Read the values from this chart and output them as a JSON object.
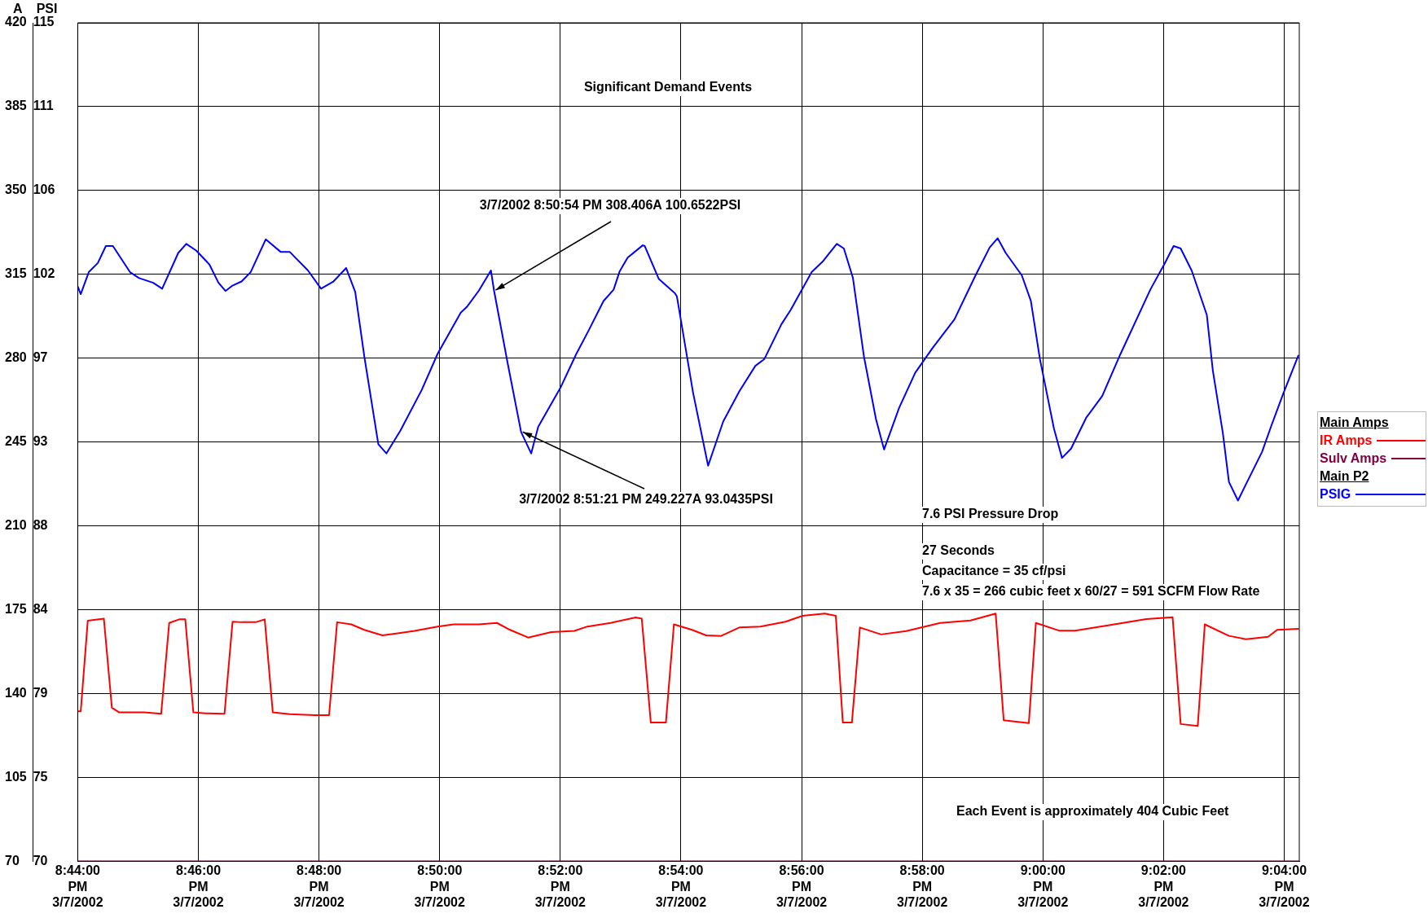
{
  "chart_data": {
    "type": "line",
    "title": "Significant Demand Events",
    "ylabel": "A",
    "y2label": "PSI",
    "xlim": [
      "2002-03-07T20:44:00",
      "2002-03-07T21:04:15"
    ],
    "xticks": [
      {
        "value": "2002-03-07T20:44",
        "label": "8:44:00 PM 3/7/2002"
      },
      {
        "value": "2002-03-07T20:46",
        "label": "8:46:00 PM 3/7/2002"
      },
      {
        "value": "2002-03-07T20:48",
        "label": "8:48:00 PM 3/7/2002"
      },
      {
        "value": "2002-03-07T20:50",
        "label": "8:50:00 PM 3/7/2002"
      },
      {
        "value": "2002-03-07T20:52",
        "label": "8:52:00 PM 3/7/2002"
      },
      {
        "value": "2002-03-07T20:54",
        "label": "8:54:00 PM 3/7/2002"
      },
      {
        "value": "2002-03-07T20:56",
        "label": "8:56:00 PM 3/7/2002"
      },
      {
        "value": "2002-03-07T20:58",
        "label": "8:58:00 PM 3/7/2002"
      },
      {
        "value": "2002-03-07T21:00",
        "label": "9:00:00 PM 3/7/2002"
      },
      {
        "value": "2002-03-07T21:02",
        "label": "9:02:00 PM 3/7/2002"
      },
      {
        "value": "2002-03-07T21:04",
        "label": "9:04:00 PM 3/7/2002"
      }
    ],
    "ylim": [
      70,
      420
    ],
    "yticks": [
      70,
      105,
      140,
      175,
      210,
      245,
      280,
      315,
      350,
      385,
      420
    ],
    "y2lim": [
      70,
      115
    ],
    "y2ticks": [
      70,
      {
        "value": 74.5,
        "label": "75"
      },
      79,
      {
        "value": 83.5,
        "label": "84"
      },
      88,
      {
        "value": 92.5,
        "label": "93"
      },
      97,
      {
        "value": 101.5,
        "label": "102"
      },
      106,
      {
        "value": 110.5,
        "label": "111"
      },
      115
    ],
    "grid": true,
    "legend": "right",
    "marker": "none",
    "line_style": "solid",
    "annotations": [
      {
        "text": "3/7/2002 8:50:54 PM 308.406A 100.6522PSI",
        "x": "2002-03-07T20:50:54",
        "y": 308.406
      },
      {
        "text": "3/7/2002 8:51:21 PM 249.227A 93.0435PSI",
        "x": "2002-03-07T20:51:21",
        "y": 249.227
      },
      "7.6 PSI Pressure Drop",
      "27 Seconds",
      "Capacitance = 35 cf/psi",
      "7.6 x 35 = 266 cubic feet x 60/27 = 591 SCFM Flow Rate",
      "Each Event is approximately 404 Cubic Feet",
      "Main Amps",
      "Main P2"
    ],
    "series": [
      {
        "name": "IR Amps",
        "color": "#ff0000",
        "x": [
          "2002-03-07T20:44:00",
          "2002-03-07T20:44:03",
          "2002-03-07T20:44:10",
          "2002-03-07T20:44:26",
          "2002-03-07T20:44:34",
          "2002-03-07T20:44:41",
          "2002-03-07T20:45:06",
          "2002-03-07T20:45:23",
          "2002-03-07T20:45:31",
          "2002-03-07T20:45:41",
          "2002-03-07T20:45:47",
          "2002-03-07T20:45:55",
          "2002-03-07T20:46:07",
          "2002-03-07T20:46:26",
          "2002-03-07T20:46:34",
          "2002-03-07T20:46:43",
          "2002-03-07T20:46:57",
          "2002-03-07T20:47:06",
          "2002-03-07T20:47:14",
          "2002-03-07T20:47:31",
          "2002-03-07T20:47:56",
          "2002-03-07T20:48:10",
          "2002-03-07T20:48:18",
          "2002-03-07T20:48:32",
          "2002-03-07T20:48:45",
          "2002-03-07T20:49:03",
          "2002-03-07T20:49:17",
          "2002-03-07T20:49:35",
          "2002-03-07T20:49:58",
          "2002-03-07T20:50:14",
          "2002-03-07T20:50:39",
          "2002-03-07T20:50:57",
          "2002-03-07T20:51:10",
          "2002-03-07T20:51:28",
          "2002-03-07T20:51:51",
          "2002-03-07T20:52:14",
          "2002-03-07T20:52:27",
          "2002-03-07T20:52:50",
          "2002-03-07T20:53:15",
          "2002-03-07T20:53:21",
          "2002-03-07T20:53:30",
          "2002-03-07T20:53:45",
          "2002-03-07T20:53:53",
          "2002-03-07T20:54:11",
          "2002-03-07T20:54:25",
          "2002-03-07T20:54:40",
          "2002-03-07T20:54:58",
          "2002-03-07T20:55:19",
          "2002-03-07T20:55:44",
          "2002-03-07T20:56:01",
          "2002-03-07T20:56:23",
          "2002-03-07T20:56:34",
          "2002-03-07T20:56:41",
          "2002-03-07T20:56:50",
          "2002-03-07T20:56:58",
          "2002-03-07T20:57:19",
          "2002-03-07T20:57:44",
          "2002-03-07T20:58:18",
          "2002-03-07T20:58:48",
          "2002-03-07T20:59:13",
          "2002-03-07T20:59:21",
          "2002-03-07T20:59:46",
          "2002-03-07T20:59:53",
          "2002-03-07T21:00:16",
          "2002-03-07T21:00:32",
          "2002-03-07T21:01:06",
          "2002-03-07T21:01:43",
          "2002-03-07T21:02:09",
          "2002-03-07T21:02:17",
          "2002-03-07T21:02:34",
          "2002-03-07T21:02:41",
          "2002-03-07T21:03:05",
          "2002-03-07T21:03:22",
          "2002-03-07T21:03:44",
          "2002-03-07T21:03:53",
          "2002-03-07T21:04:14"
        ],
        "values": [
          132.6,
          132.6,
          170.4,
          171.3,
          134.1,
          132.2,
          132.2,
          131.6,
          169.5,
          171,
          171,
          132.2,
          131.8,
          131.6,
          170,
          169.8,
          169.8,
          171,
          132.2,
          131.4,
          131,
          131,
          169.8,
          168.9,
          166.6,
          164.3,
          165.1,
          166.2,
          168,
          168.9,
          168.9,
          169.5,
          166.6,
          163.4,
          165.7,
          166.2,
          168,
          169.5,
          171.8,
          171.3,
          127.9,
          127.9,
          168.9,
          166.6,
          164.3,
          164.1,
          167.6,
          168,
          170,
          172.5,
          173.4,
          172.5,
          127.9,
          127.9,
          167.6,
          164.7,
          166.1,
          169.5,
          170.5,
          173.4,
          128.9,
          127.7,
          169.5,
          166.3,
          166.3,
          168.6,
          171.1,
          171.9,
          127.3,
          126.5,
          168.9,
          164.1,
          162.7,
          163.7,
          166.6,
          167
        ]
      },
      {
        "name": "Sulv Amps",
        "color": "#800040",
        "x": [
          "2002-03-07T20:44:00",
          "2002-03-07T21:04:15"
        ],
        "values": [
          70,
          70
        ]
      },
      {
        "name": "PSIG",
        "color": "#0000ff",
        "axis": "y2",
        "x": [
          "2002-03-07T20:44:00",
          "2002-03-07T20:44:03",
          "2002-03-07T20:44:11",
          "2002-03-07T20:44:20",
          "2002-03-07T20:44:28",
          "2002-03-07T20:44:35",
          "2002-03-07T20:44:52",
          "2002-03-07T20:45:01",
          "2002-03-07T20:45:15",
          "2002-03-07T20:45:24",
          "2002-03-07T20:45:40",
          "2002-03-07T20:45:48",
          "2002-03-07T20:45:58",
          "2002-03-07T20:46:11",
          "2002-03-07T20:46:20",
          "2002-03-07T20:46:27",
          "2002-03-07T20:46:34",
          "2002-03-07T20:46:43",
          "2002-03-07T20:46:52",
          "2002-03-07T20:47:07",
          "2002-03-07T20:47:22",
          "2002-03-07T20:47:31",
          "2002-03-07T20:47:49",
          "2002-03-07T20:48:02",
          "2002-03-07T20:48:14",
          "2002-03-07T20:48:27",
          "2002-03-07T20:48:36",
          "2002-03-07T20:48:45",
          "2002-03-07T20:48:59",
          "2002-03-07T20:49:07",
          "2002-03-07T20:49:21",
          "2002-03-07T20:49:42",
          "2002-03-07T20:49:58",
          "2002-03-07T20:50:21",
          "2002-03-07T20:50:27",
          "2002-03-07T20:50:39",
          "2002-03-07T20:50:51",
          "2002-03-07T20:50:54",
          "2002-03-07T20:51:08",
          "2002-03-07T20:51:21",
          "2002-03-07T20:51:31",
          "2002-03-07T20:51:38",
          "2002-03-07T20:52:00",
          "2002-03-07T20:52:16",
          "2002-03-07T20:52:28",
          "2002-03-07T20:52:43",
          "2002-03-07T20:52:53",
          "2002-03-07T20:52:59",
          "2002-03-07T20:53:07",
          "2002-03-07T20:53:22",
          "2002-03-07T20:53:24",
          "2002-03-07T20:53:38",
          "2002-03-07T20:53:54",
          "2002-03-07T20:53:56",
          "2002-03-07T20:54:12",
          "2002-03-07T20:54:27",
          "2002-03-07T20:54:42",
          "2002-03-07T20:54:58",
          "2002-03-07T20:55:14",
          "2002-03-07T20:55:23",
          "2002-03-07T20:55:40",
          "2002-03-07T20:55:49",
          "2002-03-07T20:56:10",
          "2002-03-07T20:56:21",
          "2002-03-07T20:56:35",
          "2002-03-07T20:56:42",
          "2002-03-07T20:56:51",
          "2002-03-07T20:57:02",
          "2002-03-07T20:57:14",
          "2002-03-07T20:57:22",
          "2002-03-07T20:57:37",
          "2002-03-07T20:57:53",
          "2002-03-07T20:58:10",
          "2002-03-07T20:58:32",
          "2002-03-07T20:58:53",
          "2002-03-07T20:59:07",
          "2002-03-07T20:59:15",
          "2002-03-07T20:59:23",
          "2002-03-07T20:59:39",
          "2002-03-07T20:59:48",
          "2002-03-07T20:59:57",
          "2002-03-07T21:00:11",
          "2002-03-07T21:00:19",
          "2002-03-07T21:00:28",
          "2002-03-07T21:00:43",
          "2002-03-07T21:00:59",
          "2002-03-07T21:01:17",
          "2002-03-07T21:01:47",
          "2002-03-07T21:02:01",
          "2002-03-07T21:02:10",
          "2002-03-07T21:02:17",
          "2002-03-07T21:02:28",
          "2002-03-07T21:02:43",
          "2002-03-07T21:02:49",
          "2002-03-07T21:02:59",
          "2002-03-07T21:03:05",
          "2002-03-07T21:03:14",
          "2002-03-07T21:03:22",
          "2002-03-07T21:03:38",
          "2002-03-07T21:03:47",
          "2002-03-07T21:03:59",
          "2002-03-07T21:04:14"
        ],
        "values": [
          100.85,
          100.44,
          101.62,
          102.11,
          103.02,
          103.02,
          101.62,
          101.3,
          101.05,
          100.73,
          102.65,
          103.14,
          102.77,
          102.03,
          101.05,
          100.61,
          100.9,
          101.12,
          101.62,
          103.38,
          102.7,
          102.7,
          101.71,
          100.73,
          101.1,
          101.84,
          100.56,
          97.12,
          92.38,
          91.89,
          93.12,
          95.28,
          97.24,
          99.45,
          99.75,
          100.63,
          101.71,
          100.65,
          96.63,
          93.04,
          91.89,
          93.32,
          95.4,
          97.24,
          98.47,
          100.07,
          100.68,
          101.66,
          102.4,
          103.06,
          103.02,
          101.25,
          100.49,
          100.31,
          95.16,
          91.23,
          93.6,
          95.22,
          96.59,
          96.96,
          98.83,
          99.58,
          101.62,
          102.19,
          103.14,
          102.89,
          101.32,
          97.09,
          93.72,
          92.1,
          94.34,
          96.22,
          97.53,
          99.08,
          101.45,
          102.94,
          103.44,
          102.65,
          101.45,
          100.08,
          96.96,
          93.22,
          91.65,
          92.15,
          93.8,
          94.97,
          97.21,
          100.7,
          102.07,
          103.02,
          102.89,
          101.7,
          99.33,
          96.34,
          92.97,
          90.36,
          89.36,
          90.24,
          91.98,
          93.35,
          95.09,
          97.14
        ]
      }
    ]
  }
}
